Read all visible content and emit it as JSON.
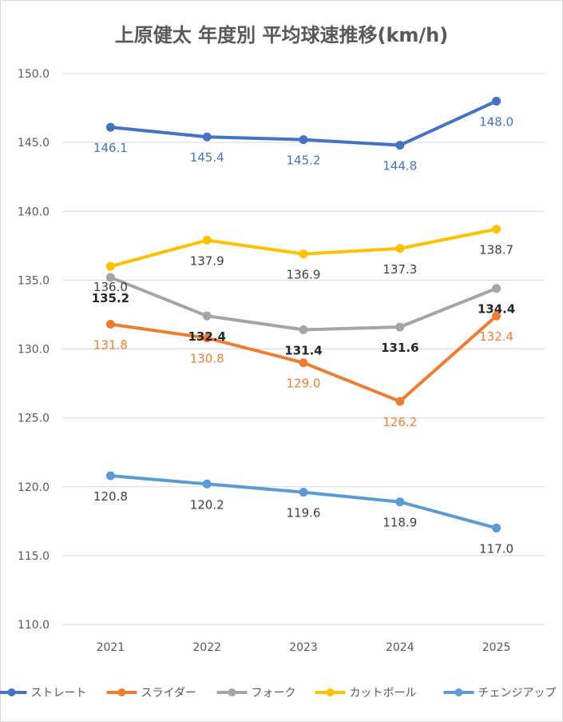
{
  "chart_data": {
    "type": "line",
    "title": "上原健太 年度別 平均球速推移(km/h)",
    "xlabel": "",
    "ylabel": "",
    "categories": [
      "2021",
      "2022",
      "2023",
      "2024",
      "2025"
    ],
    "ylim": [
      110.0,
      150.0
    ],
    "yticks": [
      "110.0",
      "115.0",
      "120.0",
      "125.0",
      "130.0",
      "135.0",
      "140.0",
      "145.0",
      "150.0"
    ],
    "grid": true,
    "legend_position": "bottom",
    "series": [
      {
        "name": "ストレート",
        "color": "#4472C4",
        "label_color": "#4472C4",
        "values": [
          146.1,
          145.4,
          145.2,
          144.8,
          148.0
        ],
        "labels": [
          "146.1",
          "145.4",
          "145.2",
          "144.8",
          "148.0"
        ]
      },
      {
        "name": "スライダー",
        "color": "#ED7D31",
        "label_color": "#ED7D31",
        "values": [
          131.8,
          130.8,
          129.0,
          126.2,
          132.4
        ],
        "labels": [
          "131.8",
          "130.8",
          "129.0",
          "126.2",
          "132.4"
        ]
      },
      {
        "name": "フォーク",
        "color": "#A5A5A5",
        "label_color": "#262626",
        "values": [
          135.2,
          132.4,
          131.4,
          131.6,
          134.4
        ],
        "labels": [
          "135.2",
          "132.4",
          "131.4",
          "131.6",
          "134.4"
        ]
      },
      {
        "name": "カットボール",
        "color": "#FFC000",
        "label_color": "#404040",
        "values": [
          136.0,
          137.9,
          136.9,
          137.3,
          138.7
        ],
        "labels": [
          "136.0",
          "137.9",
          "136.9",
          "137.3",
          "138.7"
        ]
      },
      {
        "name": "チェンジアップ",
        "color": "#5B9BD5",
        "label_color": "#404040",
        "values": [
          120.8,
          120.2,
          119.6,
          118.9,
          117.0
        ],
        "labels": [
          "120.8",
          "120.2",
          "119.6",
          "118.9",
          "117.0"
        ]
      }
    ]
  }
}
